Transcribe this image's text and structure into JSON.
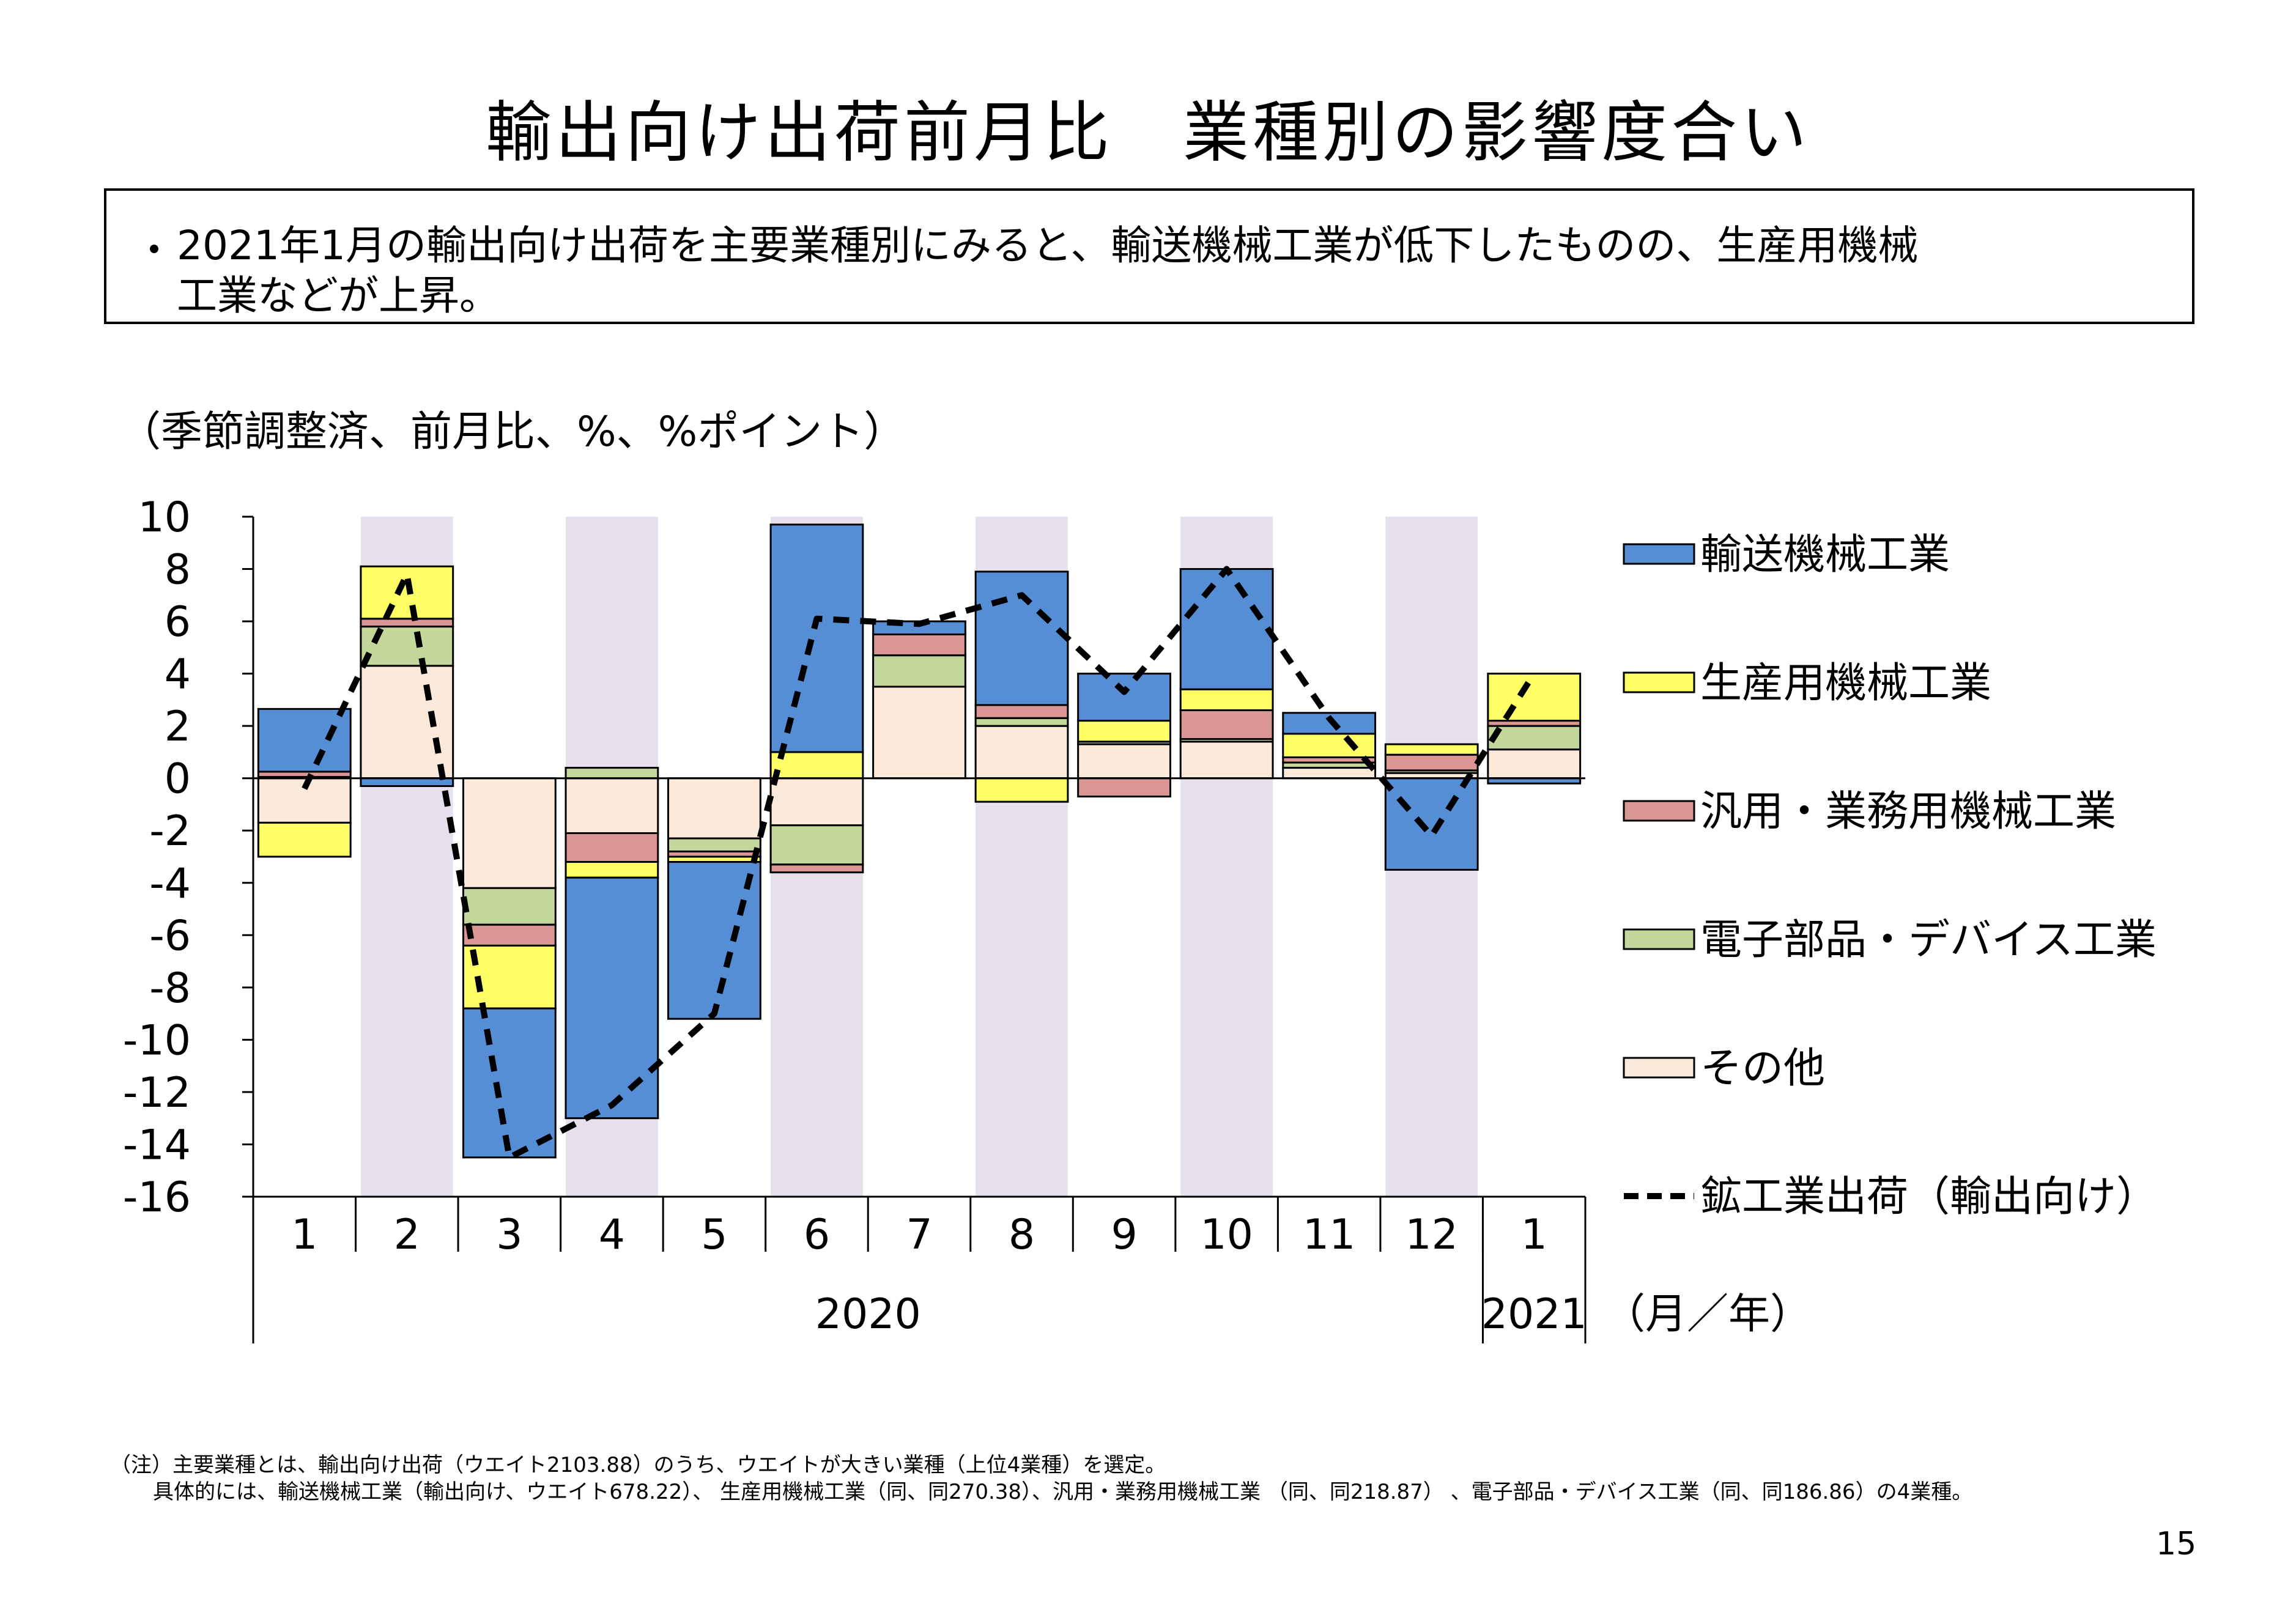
{
  "title": "輸出向け出荷前月比　業種別の影響度合い",
  "summary": {
    "bullet": "・",
    "line1": "2021年1月の輸出向け出荷を主要業種別にみると、輸送機械工業が低下したものの、生産用機械",
    "line2": "工業などが上昇。"
  },
  "unit_label": "（季節調整済、前月比、%、%ポイント）",
  "year_axis_unit": "（月／年）",
  "notes": {
    "line1": "（注）主要業種とは、輸出向け出荷（ウエイト2103.88）のうち、ウエイトが大きい業種（上位4業種）を選定。",
    "line2": "具体的には、輸送機械工業（輸出向け、ウエイト678.22）、 生産用機械工業（同、同270.38）、汎用・業務用機械工業 （同、同218.87） 、電子部品・デバイス工業（同、同186.86）の4業種。"
  },
  "page_number": "15",
  "chart_data": {
    "type": "bar",
    "stacked": true,
    "categories": [
      "1",
      "2",
      "3",
      "4",
      "5",
      "6",
      "7",
      "8",
      "9",
      "10",
      "11",
      "12",
      "1"
    ],
    "year_groups": [
      {
        "label": "2020",
        "from": 0,
        "to": 11
      },
      {
        "label": "2021",
        "from": 12,
        "to": 12
      }
    ],
    "ylim": [
      -16,
      10
    ],
    "yticks": [
      "10",
      "8",
      "6",
      "4",
      "2",
      "0",
      "-2",
      "-4",
      "-6",
      "-8",
      "-10",
      "-12",
      "-14",
      "-16"
    ],
    "shaded_categories": [
      1,
      3,
      5,
      7,
      9,
      11
    ],
    "shade_color": "#e6e0ec",
    "series": [
      {
        "name": "その他",
        "color": "#fde9d9",
        "values": [
          -1.7,
          4.3,
          -4.2,
          -2.1,
          -2.3,
          -1.8,
          3.5,
          2.0,
          1.3,
          1.4,
          0.4,
          0.2,
          1.1
        ]
      },
      {
        "name": "電子部品・デバイス工業",
        "color": "#c4d79b",
        "values": [
          0.05,
          1.5,
          -1.4,
          0.4,
          -0.5,
          -1.5,
          1.2,
          0.3,
          0.1,
          0.1,
          0.2,
          0.1,
          0.9
        ]
      },
      {
        "name": "汎用・業務用機械工業",
        "color": "#da9694",
        "values": [
          0.2,
          0.3,
          -0.8,
          -1.1,
          -0.2,
          -0.3,
          0.8,
          0.5,
          -0.7,
          1.1,
          0.2,
          0.6,
          0.2
        ]
      },
      {
        "name": "生産用機械工業",
        "color": "#ffff66",
        "values": [
          -1.3,
          2.0,
          -2.4,
          -0.6,
          -0.2,
          1.0,
          0.0,
          -0.9,
          0.8,
          0.8,
          0.9,
          0.4,
          1.8
        ]
      },
      {
        "name": "輸送機械工業",
        "color": "#558ed5",
        "values": [
          2.4,
          -0.3,
          -5.7,
          -9.2,
          -6.0,
          8.7,
          0.5,
          5.1,
          1.8,
          4.6,
          0.8,
          -3.5,
          -0.2
        ]
      }
    ],
    "line": {
      "name": "鉱工業出荷（輸出向け）",
      "style": "dashed",
      "color": "#000000",
      "values": [
        -0.4,
        7.8,
        -14.5,
        -12.5,
        -9.0,
        6.1,
        5.9,
        7.0,
        3.3,
        8.0,
        2.3,
        -2.2,
        4.0
      ]
    },
    "legend_order": [
      "輸送機械工業",
      "生産用機械工業",
      "汎用・業務用機械工業",
      "電子部品・デバイス工業",
      "その他",
      "鉱工業出荷（輸出向け）"
    ],
    "legend_position": "right"
  }
}
